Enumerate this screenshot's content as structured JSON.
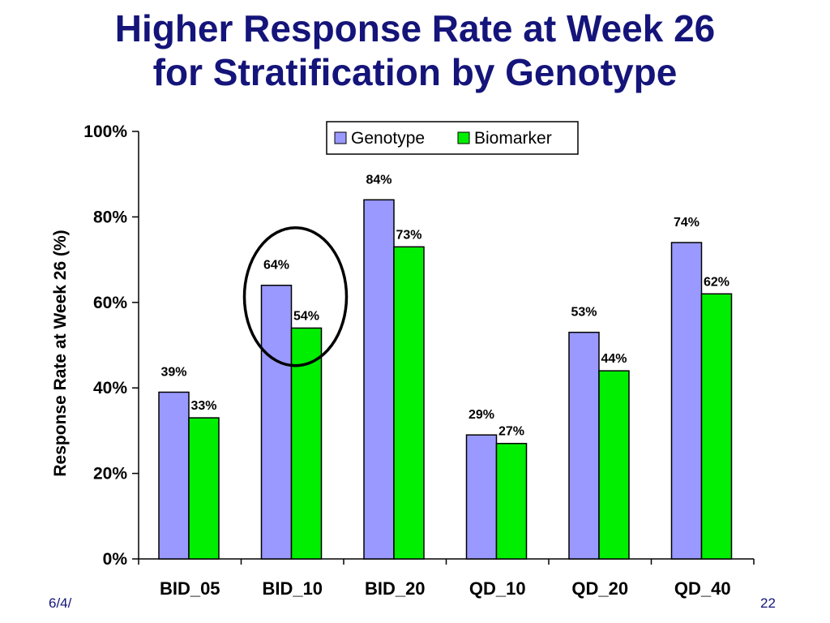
{
  "slide": {
    "title_line1": "Higher Response Rate at Week 26",
    "title_line2": "for Stratification by Genotype",
    "footer_date": "6/4/",
    "page_number": "22"
  },
  "colors": {
    "title": "#14147a",
    "genotype": "#9999ff",
    "biomarker": "#00ee00",
    "highlight_circle": "#000000"
  },
  "chart_data": {
    "type": "bar",
    "categories": [
      "BID_05",
      "BID_10",
      "BID_20",
      "QD_10",
      "QD_20",
      "QD_40"
    ],
    "series": [
      {
        "name": "Genotype",
        "values": [
          39,
          64,
          84,
          29,
          53,
          74
        ],
        "labels": [
          "39%",
          "64%",
          "84%",
          "29%",
          "53%",
          "74%"
        ]
      },
      {
        "name": "Biomarker",
        "values": [
          33,
          54,
          73,
          27,
          44,
          62
        ],
        "labels": [
          "33%",
          "54%",
          "73%",
          "27%",
          "44%",
          "62%"
        ]
      }
    ],
    "title": "",
    "xlabel": "",
    "ylabel": "Response Rate at Week 26 (%)",
    "ylim": [
      0,
      100
    ],
    "yticks": [
      0,
      20,
      40,
      60,
      80,
      100
    ],
    "ytick_labels": [
      "0%",
      "20%",
      "40%",
      "60%",
      "80%",
      "100%"
    ],
    "grid": false,
    "legend": "top-center",
    "annotation": {
      "type": "circle",
      "category": "BID_10"
    }
  }
}
